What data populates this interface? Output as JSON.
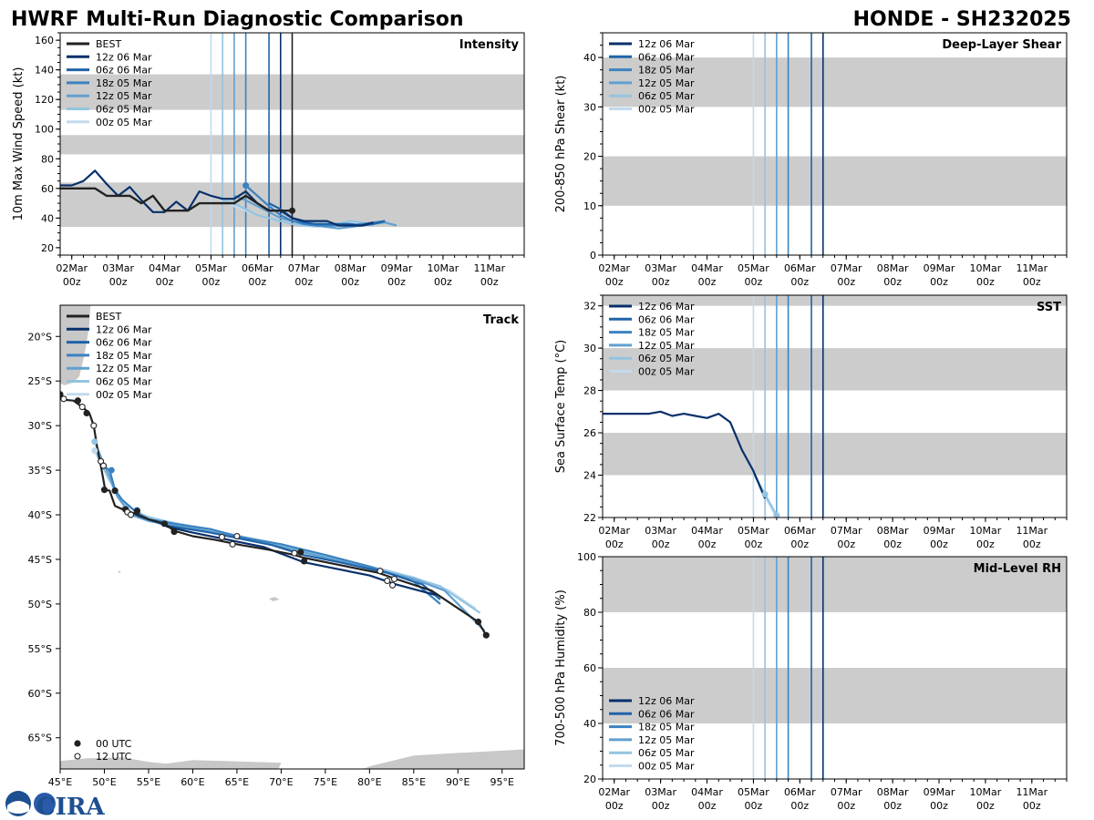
{
  "title_left": "HWRF Multi-Run Diagnostic Comparison",
  "title_right": "HONDE - SH232025",
  "colors": {
    "best": "#222222",
    "band": "#cccccc",
    "land": "#c8c8c8",
    "runs": [
      "#08306b",
      "#1f63a8",
      "#3b82c0",
      "#61a0d0",
      "#93c4e0",
      "#c3daee"
    ]
  },
  "logo_text": "CIRA",
  "chart_data": [
    {
      "id": "intensity",
      "type": "line",
      "title": "Intensity",
      "ylabel": "10m Max Wind Speed (kt)",
      "xlim": [
        -0.25,
        9.75
      ],
      "ylim": [
        15,
        165
      ],
      "yticks": [
        20,
        40,
        60,
        80,
        100,
        120,
        140,
        160
      ],
      "xtick_top": [
        "02Mar",
        "03Mar",
        "04Mar",
        "05Mar",
        "06Mar",
        "07Mar",
        "08Mar",
        "09Mar",
        "10Mar",
        "11Mar"
      ],
      "xtick_bottom": [
        "00z",
        "00z",
        "00z",
        "00z",
        "00z",
        "00z",
        "00z",
        "00z",
        "00z",
        "00z"
      ],
      "bands": [
        [
          34,
          64
        ],
        [
          83,
          96
        ],
        [
          113,
          137
        ]
      ],
      "init_lines": [
        3.0,
        3.25,
        3.5,
        3.75,
        4.25,
        4.5
      ],
      "legend": [
        "BEST",
        "12z 06 Mar",
        "06z 06 Mar",
        "18z 05 Mar",
        "12z 05 Mar",
        "06z 05 Mar",
        "00z 05 Mar"
      ],
      "best": {
        "name": "BEST",
        "x": [
          -0.25,
          0,
          0.25,
          0.5,
          0.75,
          1,
          1.25,
          1.5,
          1.75,
          2,
          2.25,
          2.5,
          2.75,
          3,
          3.25,
          3.5,
          3.75,
          4,
          4.25,
          4.5,
          4.75
        ],
        "y": [
          60,
          60,
          60,
          60,
          55,
          55,
          55,
          50,
          55,
          45,
          45,
          45,
          50,
          50,
          50,
          50,
          55,
          50,
          45,
          45,
          45
        ]
      },
      "series": [
        {
          "name": "12z 06 Mar",
          "x": [
            -0.25,
            0,
            0.25,
            0.5,
            0.75,
            1,
            1.25,
            1.5,
            1.75,
            2,
            2.25,
            2.5,
            2.75,
            3,
            3.25,
            3.5,
            3.75,
            4,
            4.25,
            4.5,
            4.75,
            5,
            5.25,
            5.5,
            5.75,
            6,
            6.25,
            6.5
          ],
          "y": [
            62,
            62,
            65,
            72,
            63,
            55,
            61,
            52,
            44,
            44,
            51,
            45,
            58,
            55,
            53,
            53,
            58,
            50,
            45,
            45,
            40,
            38,
            38,
            38,
            35,
            35,
            35,
            37
          ]
        },
        {
          "name": "06z 06 Mar",
          "x": [
            4.25,
            4.5,
            4.75,
            5,
            5.25,
            5.5,
            5.75,
            6,
            6.25,
            6.5,
            6.75
          ],
          "y": [
            50,
            46,
            40,
            37,
            36,
            36,
            36,
            36,
            35,
            36,
            38
          ]
        },
        {
          "name": "18z 05 Mar",
          "x": [
            3.75,
            4,
            4.25,
            4.5,
            4.75,
            5,
            5.25,
            5.5,
            5.75,
            6,
            6.25,
            6.5,
            6.75
          ],
          "y": [
            62,
            55,
            48,
            42,
            38,
            36,
            35,
            35,
            35,
            35,
            36,
            37,
            38
          ]
        },
        {
          "name": "12z 05 Mar",
          "x": [
            3.5,
            3.75,
            4,
            4.25,
            4.5,
            4.75,
            5,
            5.25,
            5.5,
            5.75,
            6,
            6.25,
            6.5,
            6.75,
            7
          ],
          "y": [
            55,
            52,
            48,
            44,
            40,
            38,
            36,
            35,
            34,
            33,
            34,
            35,
            36,
            37,
            35
          ]
        },
        {
          "name": "06z 05 Mar",
          "x": [
            3.25,
            3.5,
            3.75,
            4,
            4.25,
            4.5,
            4.75,
            5,
            5.25,
            5.5,
            5.75,
            6,
            6.25,
            6.5
          ],
          "y": [
            52,
            50,
            46,
            42,
            40,
            38,
            36,
            35,
            35,
            35,
            36,
            38,
            37,
            35
          ]
        },
        {
          "name": "00z 05 Mar",
          "x": [
            3,
            3.25,
            3.5,
            3.75,
            4,
            4.25,
            4.5,
            4.75,
            5,
            5.25,
            5.5,
            5.75,
            6,
            6.25
          ],
          "y": [
            55,
            52,
            48,
            45,
            42,
            40,
            38,
            36,
            35,
            34,
            35,
            36,
            37,
            35
          ]
        }
      ],
      "markers": [
        {
          "x": 4.75,
          "y": 45,
          "s": "best"
        },
        {
          "x": 3.75,
          "y": 62,
          "s": 2
        }
      ]
    },
    {
      "id": "shear",
      "type": "line",
      "title": "Deep-Layer Shear",
      "ylabel": "200-850 hPa Shear (kt)",
      "xlim": [
        -0.25,
        9.75
      ],
      "ylim": [
        0,
        45
      ],
      "yticks": [
        0,
        10,
        20,
        30,
        40
      ],
      "xtick_top": [
        "02Mar",
        "03Mar",
        "04Mar",
        "05Mar",
        "06Mar",
        "07Mar",
        "08Mar",
        "09Mar",
        "10Mar",
        "11Mar"
      ],
      "xtick_bottom": [
        "00z",
        "00z",
        "00z",
        "00z",
        "00z",
        "00z",
        "00z",
        "00z",
        "00z",
        "00z"
      ],
      "bands": [
        [
          10,
          20
        ],
        [
          30,
          40
        ]
      ],
      "init_lines": [
        3.0,
        3.25,
        3.5,
        3.75,
        4.25,
        4.5
      ],
      "legend": [
        "12z 06 Mar",
        "06z 06 Mar",
        "18z 05 Mar",
        "12z 05 Mar",
        "06z 05 Mar",
        "00z 05 Mar"
      ],
      "series": [],
      "markers": []
    },
    {
      "id": "sst",
      "type": "line",
      "title": "SST",
      "ylabel": "Sea Surface Temp (°C)",
      "xlim": [
        -0.25,
        9.75
      ],
      "ylim": [
        22,
        32.5
      ],
      "yticks": [
        22,
        24,
        26,
        28,
        30,
        32
      ],
      "xtick_top": [
        "02Mar",
        "03Mar",
        "04Mar",
        "05Mar",
        "06Mar",
        "07Mar",
        "08Mar",
        "09Mar",
        "10Mar",
        "11Mar"
      ],
      "xtick_bottom": [
        "00z",
        "00z",
        "00z",
        "00z",
        "00z",
        "00z",
        "00z",
        "00z",
        "00z",
        "00z"
      ],
      "bands": [
        [
          24,
          26
        ],
        [
          28,
          30
        ],
        [
          32,
          32.5
        ]
      ],
      "init_lines": [
        3.0,
        3.25,
        3.5,
        3.75,
        4.25,
        4.5
      ],
      "legend": [
        "12z 06 Mar",
        "06z 06 Mar",
        "18z 05 Mar",
        "12z 05 Mar",
        "06z 05 Mar",
        "00z 05 Mar"
      ],
      "series": [
        {
          "name": "12z 06 Mar",
          "x": [
            -0.25,
            0,
            0.25,
            0.5,
            0.75,
            1,
            1.25,
            1.5,
            1.75,
            2,
            2.25,
            2.5,
            2.75,
            3,
            3.25
          ],
          "y": [
            26.9,
            26.9,
            26.9,
            26.9,
            26.9,
            27.0,
            26.8,
            26.9,
            26.8,
            26.7,
            26.9,
            26.5,
            25.2,
            24.2,
            22.9
          ]
        },
        {
          "name": "06z 05 Mar",
          "x": [
            3.0,
            3.25,
            3.5
          ],
          "y": [
            24.1,
            23.1,
            22.1
          ]
        },
        {
          "name": "00z 05 Mar",
          "x": [
            3.0,
            3.25,
            3.5
          ],
          "y": [
            24.2,
            23.0,
            22.0
          ]
        }
      ],
      "markers": [
        {
          "x": 3.25,
          "y": 23.1,
          "s": 4
        },
        {
          "x": 3.5,
          "y": 22.1,
          "s": 4
        }
      ]
    },
    {
      "id": "rh",
      "type": "line",
      "title": "Mid-Level RH",
      "ylabel": "700-500 hPa Humidity (%)",
      "xlim": [
        -0.25,
        9.75
      ],
      "ylim": [
        20,
        100
      ],
      "yticks": [
        20,
        40,
        60,
        80,
        100
      ],
      "xtick_top": [
        "02Mar",
        "03Mar",
        "04Mar",
        "05Mar",
        "06Mar",
        "07Mar",
        "08Mar",
        "09Mar",
        "10Mar",
        "11Mar"
      ],
      "xtick_bottom": [
        "00z",
        "00z",
        "00z",
        "00z",
        "00z",
        "00z",
        "00z",
        "00z",
        "00z",
        "00z"
      ],
      "bands": [
        [
          40,
          60
        ],
        [
          80,
          100
        ]
      ],
      "init_lines": [
        3.0,
        3.25,
        3.5,
        3.75,
        4.25,
        4.5
      ],
      "legend": [
        "12z 06 Mar",
        "06z 06 Mar",
        "18z 05 Mar",
        "12z 05 Mar",
        "06z 05 Mar",
        "00z 05 Mar"
      ],
      "series": [],
      "markers": []
    },
    {
      "id": "track",
      "type": "scatter",
      "title": "Track",
      "xlim": [
        45,
        97.5
      ],
      "ylim": [
        -68.5,
        -16.5
      ],
      "xticks": [
        45,
        50,
        55,
        60,
        65,
        70,
        75,
        80,
        85,
        90,
        95
      ],
      "xticklabels": [
        "45°E",
        "50°E",
        "55°E",
        "60°E",
        "65°E",
        "70°E",
        "75°E",
        "80°E",
        "85°E",
        "90°E",
        "95°E"
      ],
      "yticks": [
        -20,
        -25,
        -30,
        -35,
        -40,
        -45,
        -50,
        -55,
        -60,
        -65
      ],
      "yticklabels": [
        "20°S",
        "25°S",
        "30°S",
        "35°S",
        "40°S",
        "45°S",
        "50°S",
        "55°S",
        "60°S",
        "65°S"
      ],
      "legend": [
        "BEST",
        "12z 06 Mar",
        "06z 06 Mar",
        "18z 05 Mar",
        "12z 05 Mar",
        "06z 05 Mar",
        "00z 05 Mar"
      ],
      "marker_legend": [
        "00 UTC",
        "12 UTC"
      ],
      "best": {
        "name": "BEST",
        "lon": [
          45.0,
          45.5,
          46.5,
          47.5,
          48.3,
          48.8,
          49.2,
          49.6,
          50.1,
          50.6,
          51.2,
          52.3,
          53.5,
          55.0,
          56.8,
          57.9,
          60.0,
          62.5,
          65.5,
          68.5,
          71.5,
          72.5,
          76.0,
          81.0,
          83.0,
          87.0,
          92.3,
          93.2
        ],
        "lat": [
          -26.5,
          -27.1,
          -27.2,
          -27.9,
          -28.6,
          -30.0,
          -32.5,
          -34.5,
          -37.2,
          -37.3,
          -39.0,
          -39.5,
          -39.9,
          -40.5,
          -41.0,
          -41.8,
          -42.4,
          -42.8,
          -43.4,
          -43.9,
          -44.5,
          -44.8,
          -45.5,
          -46.5,
          -47.2,
          -48.5,
          -52.0,
          -53.5
        ]
      },
      "series": [
        {
          "name": "12z 06 Mar",
          "lon": [
            57.0,
            60.0,
            64.5,
            68.0,
            72.5,
            76.0,
            80.0,
            83.0,
            87.5
          ],
          "lat": [
            -41.3,
            -42.0,
            -42.9,
            -43.6,
            -45.3,
            -46.0,
            -46.8,
            -47.8,
            -49.0
          ]
        },
        {
          "name": "06z 06 Mar",
          "lon": [
            52.0,
            54.0,
            57.0,
            62.0,
            65.0,
            69.0,
            72.5,
            77.0,
            82.0,
            86.0,
            88.0
          ],
          "lat": [
            -39.2,
            -40.2,
            -41.2,
            -42.0,
            -42.6,
            -43.4,
            -44.5,
            -45.4,
            -46.5,
            -47.8,
            -49.5
          ]
        },
        {
          "name": "18z 05 Mar",
          "lon": [
            49.7,
            50.6,
            51.2,
            52.0,
            53.5,
            55.0,
            58.0,
            62.0,
            65.0,
            70.0,
            75.0,
            80.0,
            85.0,
            88.0
          ],
          "lat": [
            -34.4,
            -35.0,
            -37.2,
            -38.3,
            -39.6,
            -40.5,
            -41.0,
            -41.6,
            -42.4,
            -43.3,
            -44.5,
            -45.8,
            -47.5,
            -50.0
          ]
        },
        {
          "name": "12z 05 Mar",
          "lon": [
            49.0,
            49.8,
            50.5,
            51.5,
            53.0,
            55.0,
            60.0,
            65.0,
            70.0,
            75.0,
            80.0,
            85.0,
            88.5,
            93.0
          ],
          "lat": [
            -32.0,
            -34.0,
            -35.5,
            -38.0,
            -40.0,
            -40.7,
            -41.5,
            -42.5,
            -43.6,
            -44.8,
            -46.0,
            -47.2,
            -48.5,
            -53.0
          ]
        },
        {
          "name": "06z 05 Mar",
          "lon": [
            48.8,
            49.5,
            50.5,
            52.0,
            54.0,
            58.0,
            63.0,
            68.0,
            73.0,
            78.0,
            83.0,
            88.0,
            92.5
          ],
          "lat": [
            -32.5,
            -34.0,
            -36.0,
            -38.5,
            -40.0,
            -41.0,
            -42.0,
            -43.0,
            -44.2,
            -45.3,
            -46.5,
            -48.0,
            -51.0
          ]
        },
        {
          "name": "00z 05 Mar",
          "lon": [
            49.0,
            50.0,
            51.0,
            52.5,
            55.0,
            60.0,
            65.0,
            70.0,
            75.0,
            80.0,
            85.0,
            89.0,
            92.0
          ],
          "lat": [
            -32.0,
            -34.5,
            -37.0,
            -39.0,
            -40.3,
            -41.3,
            -42.3,
            -43.5,
            -44.7,
            -45.9,
            -47.0,
            -48.5,
            -50.5
          ]
        }
      ],
      "best_00utc": [
        [
          45.0,
          -26.5
        ],
        [
          47.0,
          -27.2
        ],
        [
          48.0,
          -28.6
        ],
        [
          50.0,
          -37.2
        ],
        [
          51.2,
          -37.3
        ],
        [
          52.4,
          -39.4
        ],
        [
          53.7,
          -39.6
        ],
        [
          56.8,
          -41.0
        ],
        [
          57.9,
          -41.9
        ],
        [
          72.2,
          -44.2
        ],
        [
          72.6,
          -45.2
        ],
        [
          92.3,
          -52.0
        ],
        [
          93.2,
          -53.5
        ]
      ],
      "open_12utc": [
        [
          45.4,
          -27.0
        ],
        [
          47.5,
          -27.9
        ],
        [
          48.8,
          -30.0
        ],
        [
          49.6,
          -34.0
        ],
        [
          49.9,
          -34.5
        ],
        [
          52.6,
          -39.7
        ],
        [
          53.0,
          -40.0
        ],
        [
          63.3,
          -42.5
        ],
        [
          64.5,
          -43.3
        ],
        [
          65.0,
          -42.4
        ],
        [
          71.5,
          -44.3
        ],
        [
          81.2,
          -46.3
        ],
        [
          82.0,
          -47.4
        ],
        [
          82.6,
          -47.9
        ],
        [
          82.8,
          -47.2
        ]
      ],
      "run_dots": [
        [
          48.9,
          -31.8,
          4
        ],
        [
          48.9,
          -32.8,
          5
        ],
        [
          50.8,
          -35.0,
          2
        ],
        [
          53.7,
          -39.5,
          1
        ]
      ]
    }
  ]
}
